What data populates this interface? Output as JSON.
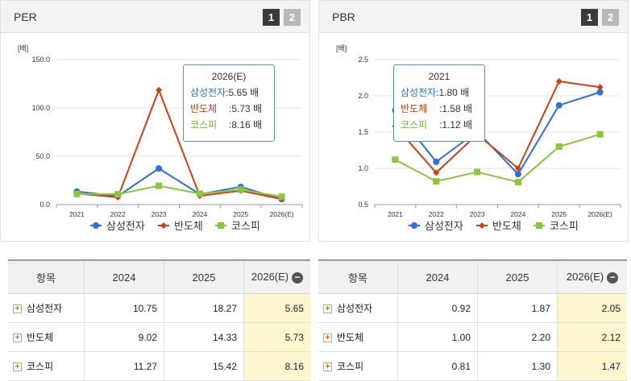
{
  "colors": {
    "samsung": "#2f6fdc",
    "semi": "#d13f12",
    "kospi": "#8cc63f"
  },
  "chart_data": [
    {
      "type": "line",
      "title": "PER",
      "pager": [
        "1",
        "2"
      ],
      "unit_label": "[배]",
      "x": [
        "2021",
        "2022",
        "2023",
        "2024",
        "2025",
        "2026(E)"
      ],
      "yticks": [
        "150.0",
        "100.0",
        "50.0",
        "0.0"
      ],
      "ylim": [
        0,
        150
      ],
      "series": [
        {
          "name": "삼성전자",
          "values": [
            13.5,
            8.8,
            37.4,
            10.75,
            18.27,
            5.65
          ]
        },
        {
          "name": "반도체",
          "values": [
            11.5,
            7.5,
            118.5,
            9.02,
            14.33,
            5.73
          ]
        },
        {
          "name": "코스피",
          "values": [
            11.0,
            10.7,
            19.5,
            11.27,
            15.42,
            8.16
          ]
        }
      ],
      "tooltip": {
        "title": "2026(E)",
        "rows": [
          {
            "name": "삼성전자",
            "value": ":5.65 배"
          },
          {
            "name": "반도체",
            "value": ":5.73 배"
          },
          {
            "name": "코스피",
            "value": ":8.16 배"
          }
        ]
      },
      "legend": "bottom"
    },
    {
      "type": "line",
      "title": "PBR",
      "pager": [
        "1",
        "2"
      ],
      "unit_label": "[배]",
      "x": [
        "2021",
        "2022",
        "2023",
        "2024",
        "2025",
        "2026(E)"
      ],
      "yticks": [
        "2.5",
        "2.0",
        "1.5",
        "1.0",
        "0.5"
      ],
      "ylim": [
        0.5,
        2.5
      ],
      "series": [
        {
          "name": "삼성전자",
          "values": [
            1.8,
            1.09,
            1.51,
            0.92,
            1.87,
            2.05
          ]
        },
        {
          "name": "반도체",
          "values": [
            1.58,
            0.94,
            1.47,
            1.0,
            2.2,
            2.12
          ]
        },
        {
          "name": "코스피",
          "values": [
            1.12,
            0.82,
            0.95,
            0.81,
            1.3,
            1.47
          ]
        }
      ],
      "tooltip": {
        "title": "2021",
        "rows": [
          {
            "name": "삼성전자",
            "value": ":1.80 배"
          },
          {
            "name": "반도체",
            "value": ":1.58 배"
          },
          {
            "name": "코스피",
            "value": ":1.12 배"
          }
        ]
      },
      "legend": "bottom"
    }
  ],
  "tables": [
    {
      "headers": [
        "항목",
        "2024",
        "2025",
        "2026(E)"
      ],
      "rows": [
        {
          "label": "삼성전자",
          "values": [
            "10.75",
            "18.27",
            "5.65"
          ]
        },
        {
          "label": "반도체",
          "values": [
            "9.02",
            "14.33",
            "5.73"
          ]
        },
        {
          "label": "코스피",
          "values": [
            "11.27",
            "15.42",
            "8.16"
          ]
        }
      ]
    },
    {
      "headers": [
        "항목",
        "2024",
        "2025",
        "2026(E)"
      ],
      "rows": [
        {
          "label": "삼성전자",
          "values": [
            "0.92",
            "1.87",
            "2.05"
          ]
        },
        {
          "label": "반도체",
          "values": [
            "1.00",
            "2.20",
            "2.12"
          ]
        },
        {
          "label": "코스피",
          "values": [
            "0.81",
            "1.30",
            "1.47"
          ]
        }
      ]
    }
  ]
}
